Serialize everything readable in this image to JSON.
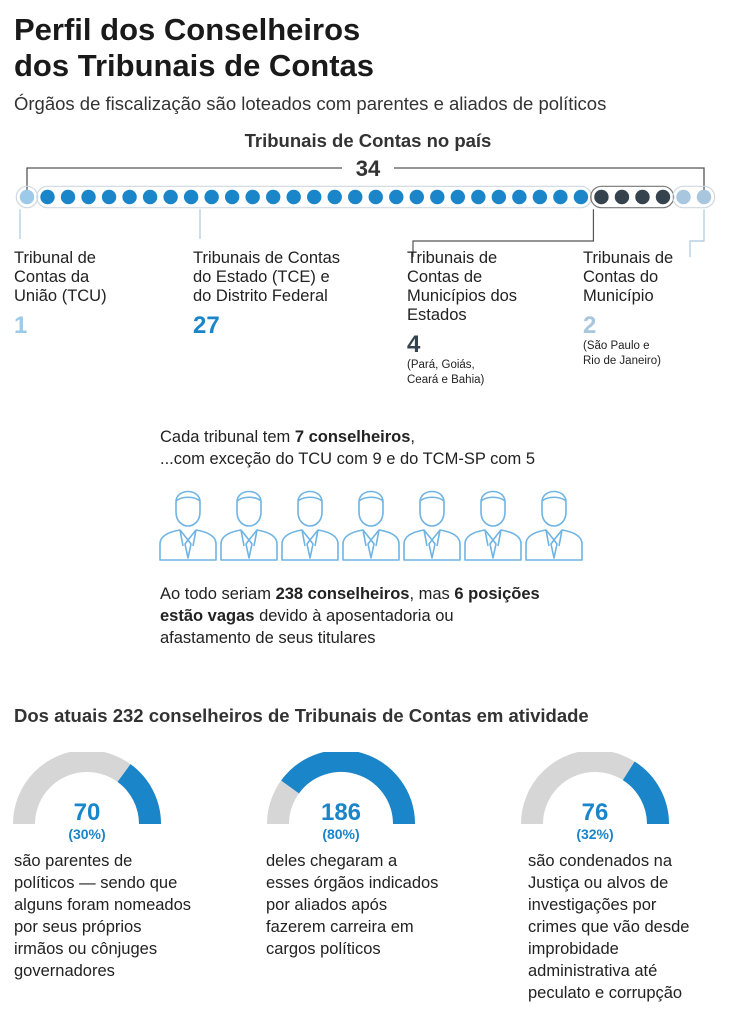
{
  "header": {
    "title_line1": "Perfil dos Conselheiros",
    "title_line2": "dos Tribunais de Contas",
    "subtitle": "Órgãos de fiscalização são loteados com parentes e aliados de políticos"
  },
  "counter": {
    "title": "Tribunais de Contas no país",
    "total": "34"
  },
  "colors": {
    "tcu": "#9ccae8",
    "tce": "#1b85c9",
    "tcm_estados": "#34434d",
    "tcm_municipio": "#a8c6de",
    "gauge_track": "#d6d6d6"
  },
  "chart_data": [
    {
      "type": "dot-count",
      "title": "Tribunais de Contas no país",
      "total": 34,
      "series": [
        {
          "name": "Tribunal de Contas da União (TCU)",
          "values": [
            1
          ]
        },
        {
          "name": "Tribunais de Contas do Estado (TCE) e do Distrito Federal",
          "values": [
            27
          ]
        },
        {
          "name": "Tribunais de Contas de Municípios dos Estados",
          "values": [
            4
          ]
        },
        {
          "name": "Tribunais de Contas do Município",
          "values": [
            2
          ]
        }
      ]
    },
    {
      "type": "pie",
      "title": "Dos atuais 232 conselheiros de Tribunais de Contas em atividade",
      "total": 232,
      "series": [
        {
          "name": "são parentes de políticos — sendo que alguns foram nomeados por seus próprios irmãos ou cônjuges governadores",
          "values": [
            70
          ],
          "percent": 30
        },
        {
          "name": "deles chegaram a esses órgãos indicados por aliados após fazerem carreira em cargos políticos",
          "values": [
            186
          ],
          "percent": 80
        },
        {
          "name": "são condenados na Justiça ou alvos de investigações por crimes que vão desde improbidade administrativa até peculato e corrupção",
          "values": [
            76
          ],
          "percent": 32
        }
      ]
    }
  ],
  "categories": {
    "tcu": {
      "l1": "Tribunal de",
      "l2": "Contas da",
      "l3": "União (TCU)",
      "num": "1"
    },
    "tce": {
      "l1": "Tribunais de Contas",
      "l2": "do Estado (TCE) e",
      "l3": "do Distrito Federal",
      "num": "27"
    },
    "tcm_estados": {
      "l1": "Tribunais de",
      "l2": "Contas de",
      "l3": "Municípios dos",
      "l4": "Estados",
      "num": "4",
      "note1": "(Pará, Goiás,",
      "note2": "Ceará e Bahia)"
    },
    "tcm_municipio": {
      "l1": "Tribunais de",
      "l2": "Contas do",
      "l3": "Município",
      "num": "2",
      "note1": "(São Paulo e",
      "note2": "Rio de Janeiro)"
    }
  },
  "conselheiros": {
    "line1_a": "Cada tribunal tem ",
    "line1_b": "7 conselheiros",
    "line1_c": ",",
    "line2": "...com exceção do TCU com 9 e do TCM-SP com 5",
    "people_count": 7,
    "total_a": "Ao todo seriam ",
    "total_b": "238 conselheiros",
    "total_c": ", mas ",
    "total_d": "6 posições",
    "total_e": "estão vagas",
    "total_f": " devido à aposentadoria ou",
    "total_g": "afastamento de seus titulares"
  },
  "gauges": {
    "section_title": "Dos atuais 232 conselheiros de Tribunais de Contas em atividade",
    "g1": {
      "value": "70",
      "percent": "(30%)",
      "t1": "são parentes de",
      "t2": "políticos — sendo que",
      "t3": "alguns foram nomeados",
      "t4": "por seus próprios",
      "t5": "irmãos ou cônjuges",
      "t6": "governadores"
    },
    "g2": {
      "value": "186",
      "percent": "(80%)",
      "t1": "deles chegaram a",
      "t2": "esses órgãos indicados",
      "t3": "por aliados após",
      "t4": "fazerem carreira em",
      "t5": "cargos políticos"
    },
    "g3": {
      "value": "76",
      "percent": "(32%)",
      "t1": "são condenados na",
      "t2": "Justiça ou alvos de",
      "t3": "investigações por",
      "t4": "crimes que vão desde",
      "t5": "improbidade",
      "t6": "administrativa até",
      "t7": "peculato e corrupção"
    }
  }
}
